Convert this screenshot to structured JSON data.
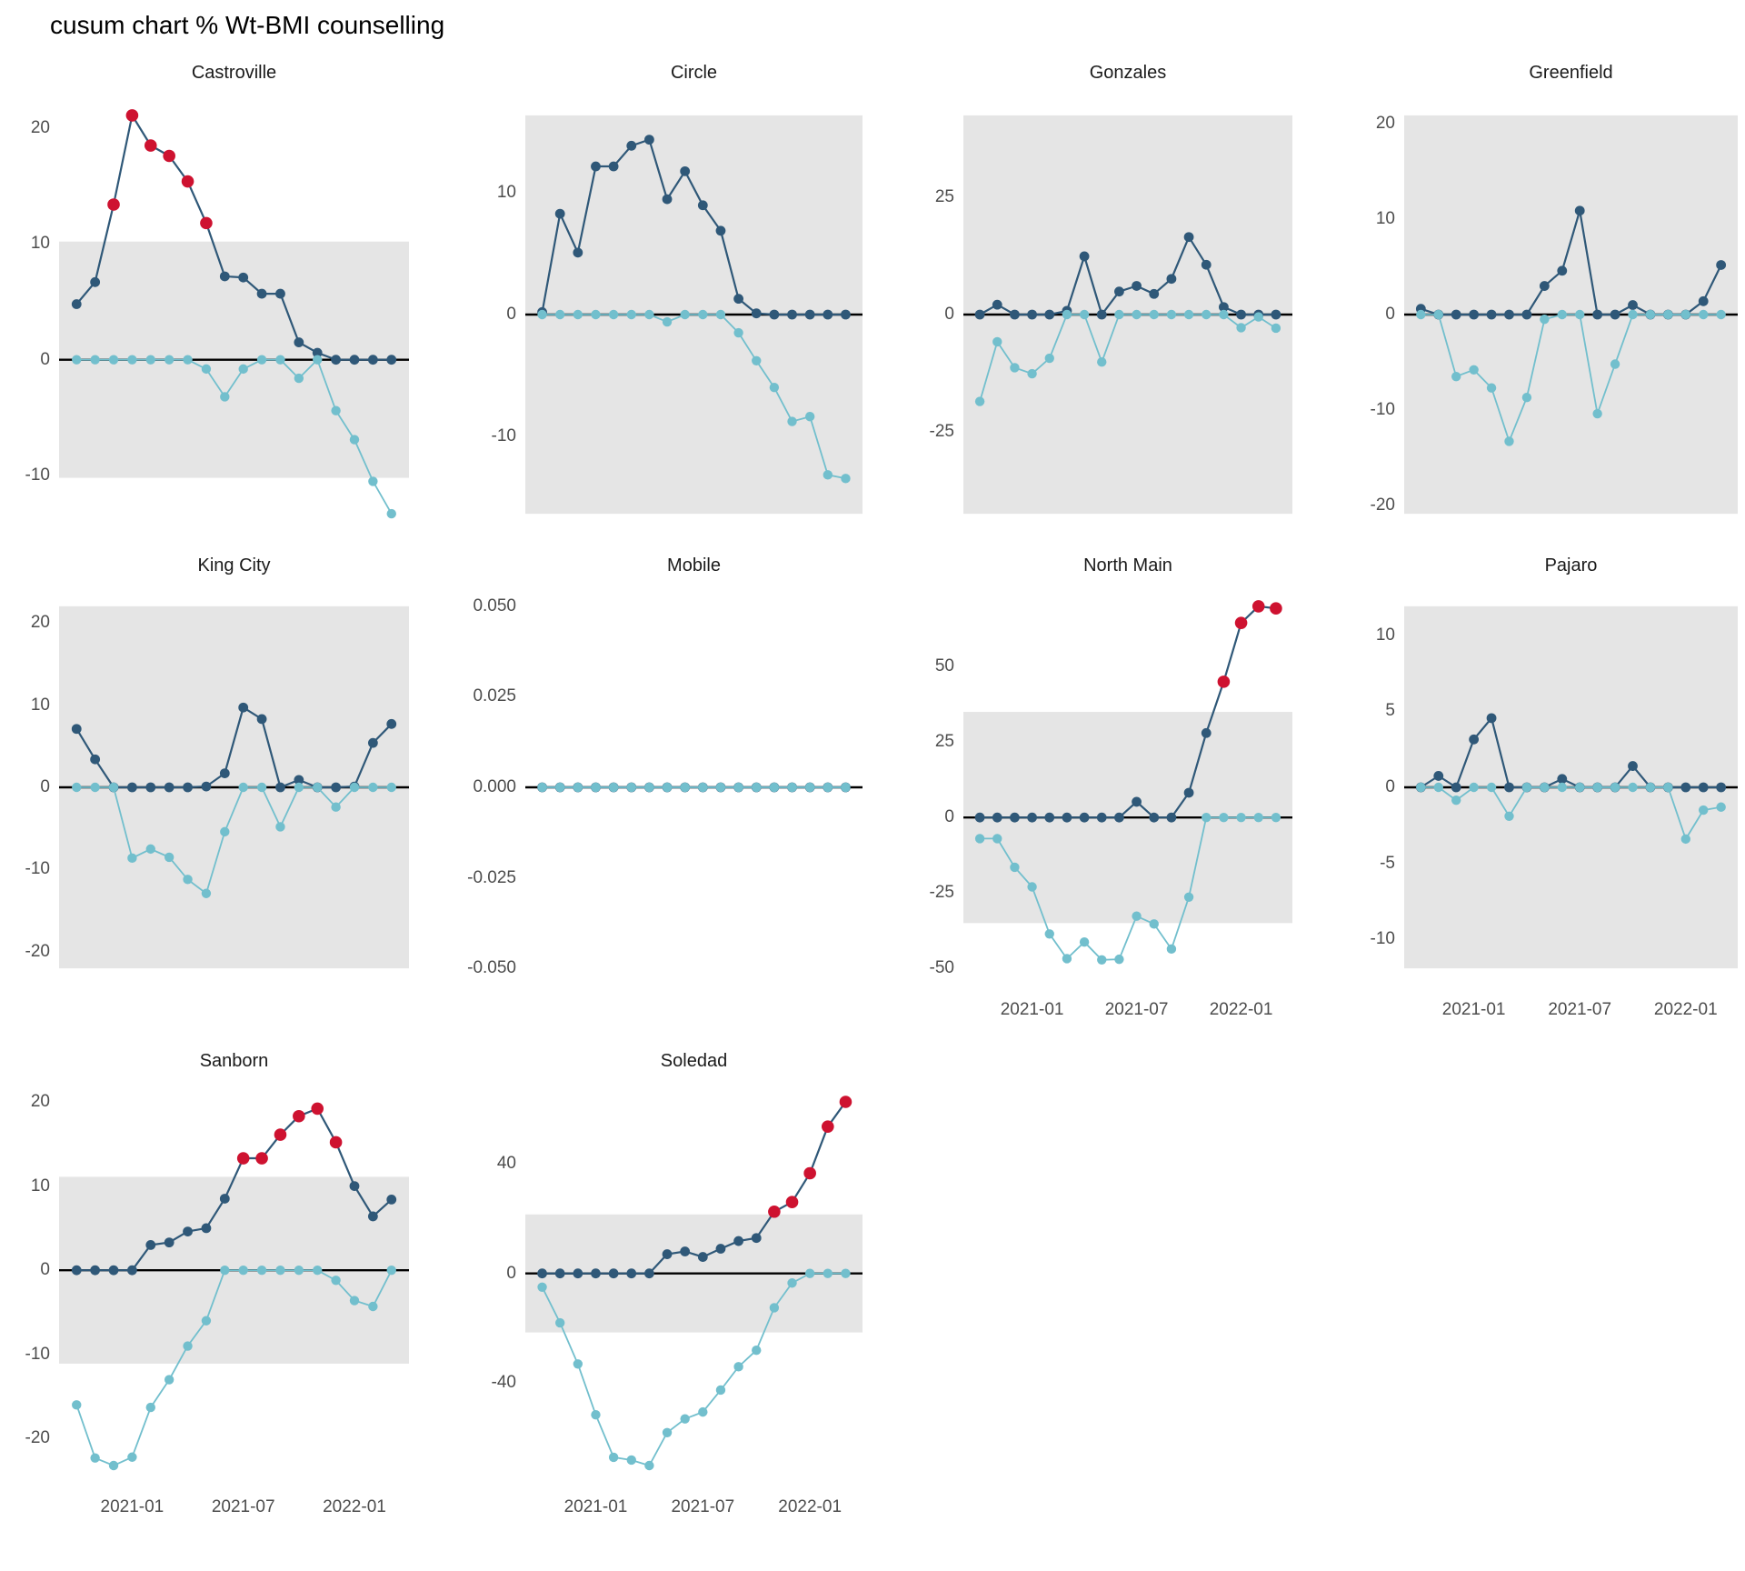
{
  "title": "cusum chart % Wt-BMI counselling",
  "colors": {
    "upper_series": "#2F5878",
    "lower_series": "#72BFCD",
    "signal_point": "#CE1230",
    "control_band": "#E5E5E5",
    "zero_line": "#000000",
    "axis_text": "#4D4D4D",
    "facet_title_text": "#1A1A1A",
    "title_text": "#000000"
  },
  "x_axis": {
    "months": [
      "2020-10",
      "2020-11",
      "2020-12",
      "2021-01",
      "2021-02",
      "2021-03",
      "2021-04",
      "2021-05",
      "2021-06",
      "2021-07",
      "2021-08",
      "2021-09",
      "2021-10",
      "2021-11",
      "2021-12",
      "2022-01",
      "2022-02",
      "2022-03"
    ],
    "tick_labels": [
      "2021-01",
      "2021-07",
      "2022-01"
    ],
    "tick_indices": [
      3,
      9,
      15
    ]
  },
  "legend": {
    "shown": false,
    "series_names": [
      "upper cusum",
      "lower cusum",
      "signal"
    ]
  },
  "chart_data": [
    {
      "type": "line",
      "title": "Castroville",
      "yticks": [
        20,
        10,
        0,
        -10
      ],
      "band": [
        -10.2,
        10.2
      ],
      "show_x_axis": false,
      "series": [
        {
          "name": "upper cusum",
          "values": [
            4.8,
            6.7,
            13.4,
            21.1,
            18.5,
            17.6,
            15.4,
            11.8,
            7.2,
            7.1,
            5.7,
            5.7,
            1.5,
            0.6,
            0,
            0,
            0,
            0
          ]
        },
        {
          "name": "lower cusum",
          "values": [
            0,
            0,
            0,
            0,
            0,
            0,
            0,
            -0.8,
            -3.2,
            -0.8,
            0,
            0,
            -1.6,
            0,
            -4.4,
            -6.9,
            -10.5,
            -13.3
          ]
        }
      ],
      "signal_indices_upper": [
        2,
        3,
        4,
        5,
        6,
        7
      ]
    },
    {
      "type": "line",
      "title": "Circle",
      "yticks": [
        10,
        0,
        -10
      ],
      "band": [
        -16.4,
        16.4
      ],
      "show_x_axis": false,
      "series": [
        {
          "name": "upper cusum",
          "values": [
            0.2,
            8.3,
            5.1,
            12.2,
            12.2,
            13.9,
            14.4,
            9.5,
            11.8,
            9.0,
            6.9,
            1.3,
            0.1,
            0,
            0,
            0,
            0,
            0
          ]
        },
        {
          "name": "lower cusum",
          "values": [
            0,
            0,
            0,
            0,
            0,
            0,
            0,
            -0.6,
            0,
            0,
            0,
            -1.5,
            -3.8,
            -6.0,
            -8.8,
            -8.4,
            -13.2,
            -13.5
          ]
        }
      ],
      "signal_indices_upper": []
    },
    {
      "type": "line",
      "title": "Gonzales",
      "yticks": [
        25,
        0,
        -25
      ],
      "band": [
        -42.4,
        42.4
      ],
      "show_x_axis": false,
      "series": [
        {
          "name": "upper cusum",
          "values": [
            0,
            2.1,
            0,
            0,
            0,
            0.8,
            12.4,
            0,
            4.9,
            6.1,
            4.4,
            7.6,
            16.5,
            10.6,
            1.6,
            0,
            0,
            0
          ]
        },
        {
          "name": "lower cusum",
          "values": [
            -18.5,
            -5.8,
            -11.3,
            -12.6,
            -9.3,
            0,
            0,
            -10.1,
            0,
            0,
            0,
            0,
            0,
            0,
            0,
            -2.8,
            -0.5,
            -2.9
          ]
        }
      ],
      "signal_indices_upper": []
    },
    {
      "type": "line",
      "title": "Greenfield",
      "yticks": [
        20,
        10,
        0,
        -10,
        -20
      ],
      "band": [
        -20.9,
        20.9
      ],
      "show_x_axis": false,
      "series": [
        {
          "name": "upper cusum",
          "values": [
            0.6,
            0,
            0,
            0,
            0,
            0,
            0,
            3.0,
            4.6,
            10.9,
            0,
            0,
            1.0,
            0,
            0,
            0,
            1.4,
            5.2
          ]
        },
        {
          "name": "lower cusum",
          "values": [
            0,
            0,
            -6.5,
            -5.8,
            -7.7,
            -13.3,
            -8.7,
            -0.5,
            0,
            0,
            -10.4,
            -5.2,
            0,
            0,
            0,
            0,
            0,
            0
          ]
        }
      ],
      "signal_indices_upper": []
    },
    {
      "type": "line",
      "title": "King City",
      "yticks": [
        20,
        10,
        0,
        -10,
        -20
      ],
      "band": [
        -22.0,
        22.0
      ],
      "show_x_axis": false,
      "series": [
        {
          "name": "upper cusum",
          "values": [
            7.1,
            3.4,
            0,
            0,
            0,
            0,
            0,
            0.1,
            1.7,
            9.7,
            8.3,
            0,
            0.9,
            0,
            0,
            0.1,
            5.4,
            7.7
          ]
        },
        {
          "name": "lower cusum",
          "values": [
            0,
            0,
            0,
            -8.6,
            -7.5,
            -8.5,
            -11.2,
            -12.9,
            -5.4,
            0,
            0,
            -4.8,
            0,
            0,
            -2.4,
            0,
            0,
            0
          ]
        }
      ],
      "signal_indices_upper": []
    },
    {
      "type": "line",
      "title": "Mobile",
      "yticks": [
        "0.050",
        "0.025",
        "0.000",
        "-0.025",
        "-0.050"
      ],
      "band": null,
      "show_x_axis": false,
      "series": [
        {
          "name": "upper cusum",
          "values": [
            0,
            0,
            0,
            0,
            0,
            0,
            0,
            0,
            0,
            0,
            0,
            0,
            0,
            0,
            0,
            0,
            0,
            0
          ]
        },
        {
          "name": "lower cusum",
          "values": [
            0,
            0,
            0,
            0,
            0,
            0,
            0,
            0,
            0,
            0,
            0,
            0,
            0,
            0,
            0,
            0,
            0,
            0
          ]
        }
      ],
      "signal_indices_upper": []
    },
    {
      "type": "line",
      "title": "North Main",
      "yticks": [
        50,
        25,
        0,
        -25,
        -50
      ],
      "band": [
        -35.0,
        35.0
      ],
      "show_x_axis": true,
      "series": [
        {
          "name": "upper cusum",
          "values": [
            0,
            0,
            0,
            0,
            0,
            0,
            0,
            0,
            0,
            5.2,
            0,
            0,
            8.2,
            28,
            45,
            64.5,
            70,
            69.3
          ]
        },
        {
          "name": "lower cusum",
          "values": [
            -7,
            -7,
            -16.5,
            -23,
            -38.6,
            -46.8,
            -41.3,
            -47.2,
            -47,
            -32.7,
            -35.3,
            -43.6,
            -26.4,
            0,
            0,
            0,
            0,
            0
          ]
        }
      ],
      "signal_indices_upper": [
        14,
        15,
        16,
        17
      ]
    },
    {
      "type": "line",
      "title": "Pajaro",
      "yticks": [
        10,
        5,
        0,
        -5,
        -10
      ],
      "band": [
        -11.9,
        11.9
      ],
      "show_x_axis": true,
      "series": [
        {
          "name": "upper cusum",
          "values": [
            0,
            0.75,
            0,
            3.15,
            4.55,
            0,
            0,
            0,
            0.55,
            0,
            0,
            0,
            1.4,
            0,
            0,
            0,
            0,
            0
          ]
        },
        {
          "name": "lower cusum",
          "values": [
            0,
            0,
            -0.85,
            0,
            0,
            -1.9,
            0,
            0,
            0,
            0,
            0,
            0,
            0,
            0,
            0,
            -3.4,
            -1.5,
            -1.3
          ]
        }
      ],
      "signal_indices_upper": []
    },
    {
      "type": "line",
      "title": "Sanborn",
      "yticks": [
        20,
        10,
        0,
        -10,
        -20
      ],
      "band": [
        -11.1,
        11.1
      ],
      "show_x_axis": true,
      "series": [
        {
          "name": "upper cusum",
          "values": [
            0,
            0,
            0,
            0,
            3.0,
            3.3,
            4.6,
            5.0,
            8.5,
            13.3,
            13.3,
            16.1,
            18.3,
            19.2,
            15.2,
            10.0,
            6.4,
            8.4
          ]
        },
        {
          "name": "lower cusum",
          "values": [
            -16.0,
            -22.3,
            -23.2,
            -22.2,
            -16.3,
            -13.0,
            -9.0,
            -6.0,
            0,
            0,
            0,
            0,
            0,
            0,
            -1.2,
            -3.6,
            -4.3,
            0
          ]
        }
      ],
      "signal_indices_upper": [
        9,
        10,
        11,
        12,
        13,
        14
      ]
    },
    {
      "type": "line",
      "title": "Soledad",
      "yticks": [
        40,
        0,
        -40
      ],
      "band": [
        -21.5,
        21.5
      ],
      "show_x_axis": true,
      "series": [
        {
          "name": "upper cusum",
          "values": [
            0,
            0,
            0,
            0,
            0,
            0,
            0,
            7,
            8,
            6,
            9,
            11.8,
            12.9,
            22.5,
            26,
            36.5,
            53.5,
            62.5
          ]
        },
        {
          "name": "lower cusum",
          "values": [
            -5,
            -18,
            -33,
            -51.5,
            -67,
            -68,
            -70,
            -58,
            -53,
            -50.5,
            -42.5,
            -34,
            -28,
            -12.5,
            -3.5,
            0,
            0,
            0
          ]
        }
      ],
      "signal_indices_upper": [
        13,
        14,
        15,
        16,
        17
      ]
    }
  ]
}
